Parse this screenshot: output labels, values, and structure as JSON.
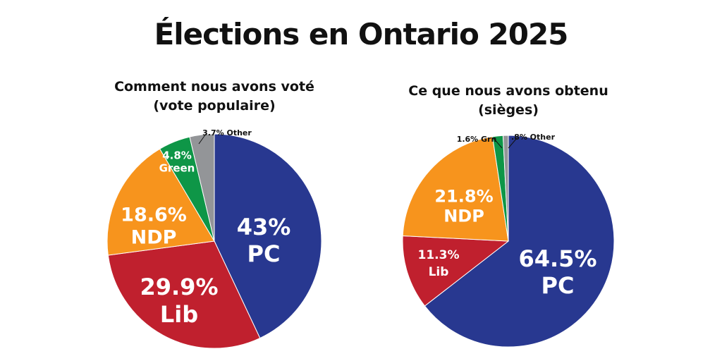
{
  "title": "Élections en Ontario 2025",
  "colors": {
    "PC": "#283890",
    "Lib": "#C0202E",
    "NDP": "#F7941D",
    "Green": "#0E9647",
    "Other": "#939598"
  },
  "chart_data": [
    {
      "type": "pie",
      "title": "Comment nous avons voté",
      "subtitle": "(vote populaire)",
      "slices": [
        {
          "name": "PC",
          "value": 43,
          "label": "43%",
          "label2": "PC"
        },
        {
          "name": "Lib",
          "value": 29.9,
          "label": "29.9%",
          "label2": "Lib"
        },
        {
          "name": "NDP",
          "value": 18.6,
          "label": "18.6%",
          "label2": "NDP"
        },
        {
          "name": "Green",
          "value": 4.8,
          "label": "4.8%",
          "label2": "Green"
        },
        {
          "name": "Other",
          "value": 3.7,
          "label": "3.7% Other",
          "label2": ""
        }
      ]
    },
    {
      "type": "pie",
      "title": "Ce que nous avons obtenu",
      "subtitle": "(sièges)",
      "slices": [
        {
          "name": "PC",
          "value": 64.5,
          "label": "64.5%",
          "label2": "PC"
        },
        {
          "name": "Lib",
          "value": 11.3,
          "label": "11.3%",
          "label2": "Lib"
        },
        {
          "name": "NDP",
          "value": 21.8,
          "label": "21.8%",
          "label2": "NDP"
        },
        {
          "name": "Green",
          "value": 1.6,
          "label": "1.6% Grn",
          "label2": ""
        },
        {
          "name": "Other",
          "value": 0.8,
          "label": ".8% Other",
          "label2": ""
        }
      ]
    }
  ]
}
